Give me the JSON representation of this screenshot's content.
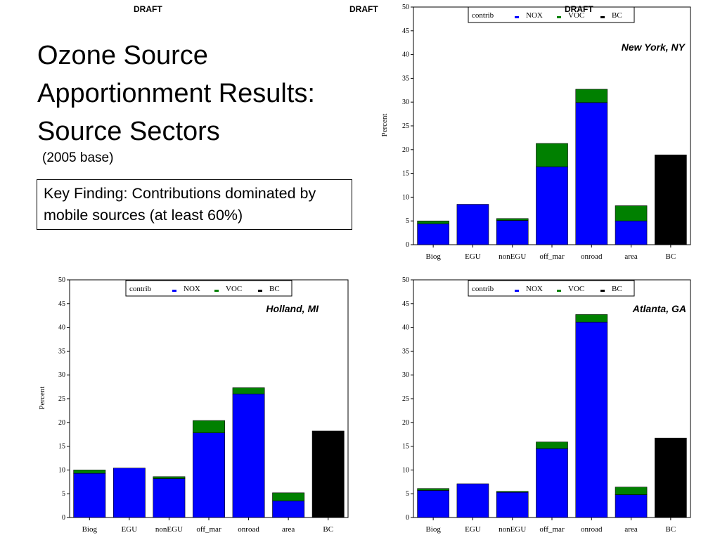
{
  "draft_marks": [
    "DRAFT",
    "DRAFT",
    "DRAFT"
  ],
  "slide": {
    "title_lines": [
      "Ozone Source",
      "Apportionment Results:",
      "Source Sectors"
    ],
    "subtitle": "(2005 base)",
    "key_finding": "Key Finding: Contributions dominated by mobile sources (at least 60%)"
  },
  "colors": {
    "NOX": "#0000ff",
    "VOC": "#008000",
    "BC": "#000000"
  },
  "chart_data": [
    {
      "type": "bar",
      "stacked": true,
      "location": "New York, NY",
      "categories": [
        "Biog",
        "EGU",
        "nonEGU",
        "off_mar",
        "onroad",
        "area",
        "BC"
      ],
      "legend_title": "contrib",
      "legend_placement": "top",
      "ylabel": "Percent",
      "ylim": [
        0,
        50
      ],
      "yticks": [
        0,
        5,
        10,
        15,
        20,
        25,
        30,
        35,
        40,
        45,
        50
      ],
      "series": [
        {
          "name": "NOX",
          "values": [
            4.4,
            8.5,
            5.1,
            16.4,
            29.9,
            5.0,
            0
          ]
        },
        {
          "name": "VOC",
          "values": [
            0.6,
            0,
            0.4,
            4.9,
            2.8,
            3.2,
            0
          ]
        },
        {
          "name": "BC",
          "values": [
            0,
            0,
            0,
            0,
            0,
            0,
            18.9
          ]
        }
      ]
    },
    {
      "type": "bar",
      "stacked": true,
      "location": "Holland, MI",
      "categories": [
        "Biog",
        "EGU",
        "nonEGU",
        "off_mar",
        "onroad",
        "area",
        "BC"
      ],
      "legend_title": "contrib",
      "legend_placement": "top",
      "ylabel": "Percent",
      "ylim": [
        0,
        50
      ],
      "yticks": [
        0,
        5,
        10,
        15,
        20,
        25,
        30,
        35,
        40,
        45,
        50
      ],
      "series": [
        {
          "name": "NOX",
          "values": [
            9.3,
            10.4,
            8.2,
            17.8,
            26.0,
            3.5,
            0
          ]
        },
        {
          "name": "VOC",
          "values": [
            0.7,
            0,
            0.4,
            2.6,
            1.3,
            1.7,
            0
          ]
        },
        {
          "name": "BC",
          "values": [
            0,
            0,
            0,
            0,
            0,
            0,
            18.2
          ]
        }
      ]
    },
    {
      "type": "bar",
      "stacked": true,
      "location": "Atlanta, GA",
      "categories": [
        "Biog",
        "EGU",
        "nonEGU",
        "off_mar",
        "onroad",
        "area",
        "BC"
      ],
      "legend_title": "contrib",
      "legend_placement": "top",
      "ylabel": "",
      "ylim": [
        0,
        50
      ],
      "yticks": [
        0,
        5,
        10,
        15,
        20,
        25,
        30,
        35,
        40,
        45,
        50
      ],
      "series": [
        {
          "name": "NOX",
          "values": [
            5.7,
            7.1,
            5.3,
            14.5,
            41.1,
            4.8,
            0
          ]
        },
        {
          "name": "VOC",
          "values": [
            0.4,
            0,
            0.2,
            1.4,
            1.6,
            1.6,
            0
          ]
        },
        {
          "name": "BC",
          "values": [
            0,
            0,
            0,
            0,
            0,
            0,
            16.7
          ]
        }
      ]
    }
  ]
}
